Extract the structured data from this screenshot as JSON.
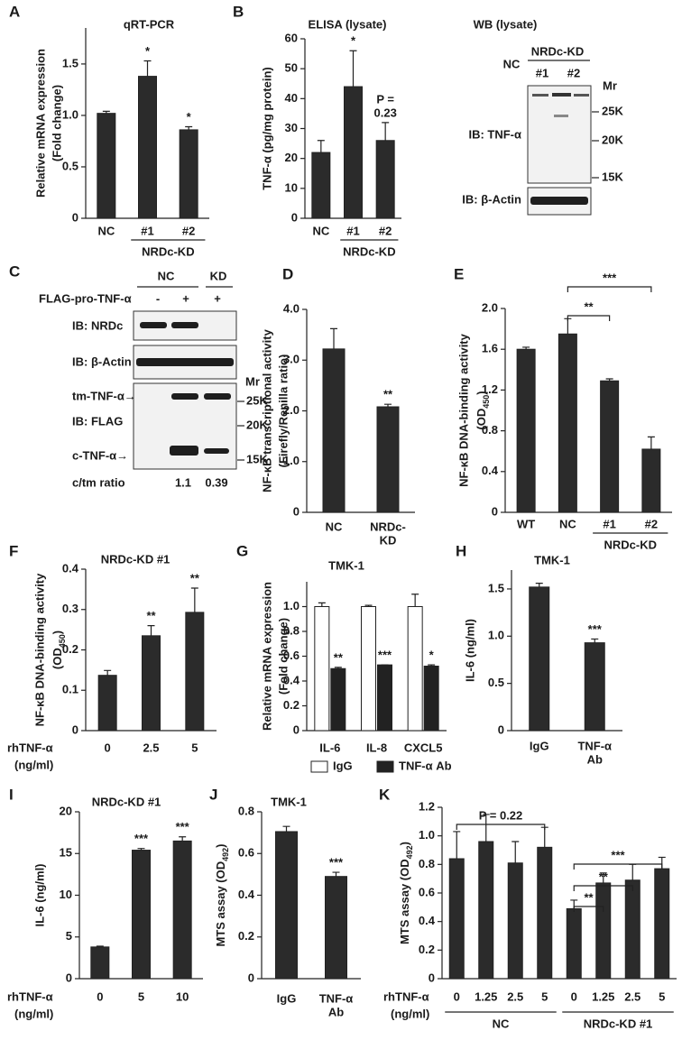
{
  "chart_data": [
    {
      "panel": "A",
      "type": "bar",
      "title": "qRT-PCR",
      "y_label": [
        "Relative mRNA expression",
        "(Fold change)"
      ],
      "categories": [
        "NC",
        "#1",
        "#2"
      ],
      "group_labels": [
        "NRDc-KD"
      ],
      "values": [
        1.02,
        1.38,
        0.86
      ],
      "errors": [
        0.02,
        0.15,
        0.03
      ],
      "significance": [
        null,
        "*",
        "*"
      ],
      "color": "#2b2b2b",
      "ylim": [
        0,
        1.85
      ],
      "yticks": [
        0,
        0.5,
        {
          "value": 1,
          "label": "1.0"
        },
        1.5
      ]
    },
    {
      "panel": "B",
      "type": "bar",
      "title": "ELISA (lysate)",
      "y_label": [
        "TNF-α (pg/mg protein)"
      ],
      "categories": [
        "NC",
        "#1",
        "#2"
      ],
      "group_labels": [
        "NRDc-KD"
      ],
      "values": [
        22,
        44,
        26
      ],
      "errors": [
        4,
        12,
        6
      ],
      "significance": [
        null,
        "*",
        [
          "P =",
          "0.23"
        ]
      ],
      "color": "#2b2b2b",
      "ylim": [
        0,
        60
      ],
      "yticks": [
        0,
        10,
        20,
        30,
        40,
        50,
        60
      ]
    },
    {
      "panel": "D",
      "type": "bar",
      "y_label": [
        "NF-κB transcriptional activity",
        "(Firefly/Renilla ratio)"
      ],
      "categories": [
        "NC",
        [
          "NRDc-",
          "KD"
        ]
      ],
      "values": [
        3.22,
        2.08
      ],
      "errors": [
        0.4,
        0.05
      ],
      "significance": [
        null,
        "**"
      ],
      "color": "#2b2b2b",
      "ylim": [
        0,
        4
      ],
      "yticks": [
        0,
        {
          "value": 1,
          "label": "1.0"
        },
        {
          "value": 2,
          "label": "2.0"
        },
        {
          "value": 3,
          "label": "3.0"
        },
        {
          "value": 4,
          "label": "4.0"
        }
      ]
    },
    {
      "panel": "E",
      "type": "bar",
      "y_label": [
        "NF-κB DNA-binding activity",
        "(OD"
      ],
      "y_label_sub": "450",
      "y_label_end": ")",
      "categories": [
        "WT",
        "NC",
        "#1",
        "#2"
      ],
      "group_labels": [
        "NRDc-KD"
      ],
      "values": [
        1.6,
        1.75,
        1.29,
        0.62
      ],
      "errors": [
        0.02,
        0.15,
        0.02,
        0.12
      ],
      "comparisons": [
        "**",
        "***"
      ],
      "color": "#2b2b2b",
      "ylim": [
        0,
        2
      ],
      "yticks": [
        0,
        0.4,
        0.8,
        1.2,
        1.6,
        {
          "value": 2,
          "label": "2.0"
        }
      ]
    },
    {
      "panel": "F",
      "type": "bar",
      "title": "NRDc-KD #1",
      "y_label": [
        "NF-κB DNA-binding activity",
        "(OD"
      ],
      "y_label_sub": "450",
      "y_label_end": ")",
      "x_label": [
        "rhTNF-α",
        "(ng/ml)"
      ],
      "categories": [
        "0",
        "2.5",
        "5"
      ],
      "values": [
        0.137,
        0.235,
        0.293
      ],
      "errors": [
        0.012,
        0.025,
        0.06
      ],
      "significance": [
        null,
        "**",
        "**"
      ],
      "color": "#2b2b2b",
      "ylim": [
        0,
        0.4
      ],
      "yticks": [
        0,
        0.1,
        0.2,
        0.3,
        0.4
      ]
    },
    {
      "panel": "G",
      "type": "bar",
      "title": "TMK-1",
      "y_label": [
        "Relative mRNA expression",
        "(Fold change)"
      ],
      "categories": [
        "IL-6",
        "IL-8",
        "CXCL5"
      ],
      "series": [
        {
          "name": "IgG",
          "color": "#ffffff",
          "values": [
            1,
            1,
            1
          ],
          "errors": [
            0.03,
            0.01,
            0.1
          ]
        },
        {
          "name": "TNF-α Ab",
          "color": "#222222",
          "values": [
            0.5,
            0.53,
            0.52
          ],
          "errors": [
            0.01,
            0,
            0.01
          ],
          "significance": [
            "**",
            "***",
            "*"
          ]
        }
      ],
      "ylim": [
        0,
        1.2
      ],
      "yticks": [
        0,
        0.2,
        0.4,
        0.6,
        0.8,
        {
          "value": 1,
          "label": "1.0"
        }
      ]
    },
    {
      "panel": "H",
      "type": "bar",
      "title": "TMK-1",
      "y_label": [
        "IL-6 (ng/ml)"
      ],
      "categories": [
        "IgG",
        [
          "TNF-α",
          "Ab"
        ]
      ],
      "values": [
        1.52,
        0.93
      ],
      "errors": [
        0.04,
        0.04
      ],
      "significance": [
        null,
        "***"
      ],
      "color": "#2b2b2b",
      "ylim": [
        0,
        1.7
      ],
      "yticks": [
        0,
        0.5,
        {
          "value": 1,
          "label": "1.0"
        },
        1.5
      ]
    },
    {
      "panel": "I",
      "type": "bar",
      "title": "NRDc-KD #1",
      "y_label": [
        "IL-6 (ng/ml)"
      ],
      "x_label": [
        "rhTNF-α",
        "(ng/ml)"
      ],
      "categories": [
        "0",
        "5",
        "10"
      ],
      "values": [
        3.8,
        15.4,
        16.5
      ],
      "errors": [
        0.1,
        0.2,
        0.5
      ],
      "significance": [
        null,
        "***",
        "***"
      ],
      "color": "#2b2b2b",
      "ylim": [
        0,
        20
      ],
      "yticks": [
        0,
        5,
        10,
        15,
        20
      ]
    },
    {
      "panel": "J",
      "type": "bar",
      "title": "TMK-1",
      "y_label": [
        "MTS assay (OD"
      ],
      "y_label_sub": "492",
      "y_label_end": ")",
      "categories": [
        "IgG",
        [
          "TNF-α",
          "Ab"
        ]
      ],
      "values": [
        0.705,
        0.49
      ],
      "errors": [
        0.025,
        0.02
      ],
      "significance": [
        null,
        "***"
      ],
      "color": "#2b2b2b",
      "ylim": [
        0,
        0.8
      ],
      "yticks": [
        0,
        0.2,
        0.4,
        0.6,
        0.8
      ]
    },
    {
      "panel": "K",
      "type": "bar",
      "y_label": [
        "MTS assay (OD"
      ],
      "y_label_sub": "492",
      "y_label_end": ")",
      "x_label": [
        "rhTNF-α",
        "(ng/ml)"
      ],
      "categories": [
        "0",
        "1.25",
        "2.5",
        "5",
        "0",
        "1.25",
        "2.5",
        "5"
      ],
      "group_labels": [
        "NC",
        "NRDc-KD #1"
      ],
      "values": [
        0.84,
        0.96,
        0.81,
        0.92,
        0.49,
        0.67,
        0.69,
        0.77
      ],
      "errors": [
        0.19,
        0.19,
        0.15,
        0.14,
        0.06,
        0.07,
        0.11,
        0.08
      ],
      "comparisons": [
        "P = 0.22",
        "**",
        "**",
        "***"
      ],
      "color": "#2b2b2b",
      "ylim": [
        0,
        1.2
      ],
      "yticks": [
        0,
        0.2,
        0.4,
        0.6,
        0.8,
        {
          "value": 1,
          "label": "1.0"
        },
        1.2
      ]
    }
  ],
  "blot_b": {
    "title": "WB (lysate)",
    "lanes": [
      "NC",
      "#1",
      "#2"
    ],
    "group_label": "NRDc-KD",
    "mr": "Mr",
    "markers": [
      "25K",
      "20K",
      "15K"
    ],
    "rows": [
      "IB: TNF-α",
      "IB: β-Actin"
    ]
  },
  "blot_c": {
    "panel": "C",
    "groups": [
      "NC",
      "KD"
    ],
    "treatment": "FLAG-pro-TNF-α",
    "treatment_signs": [
      "-",
      "+",
      "+"
    ],
    "rows": [
      "IB: NRDc",
      "IB: β-Actin",
      "IB: FLAG"
    ],
    "arrows": [
      "tm-TNF-α→",
      "c-TNF-α→"
    ],
    "mr": "Mr",
    "markers": [
      "25K",
      "20K",
      "15K"
    ],
    "ratio_label": "c/tm ratio",
    "ratios": [
      1.1,
      0.39
    ]
  }
}
